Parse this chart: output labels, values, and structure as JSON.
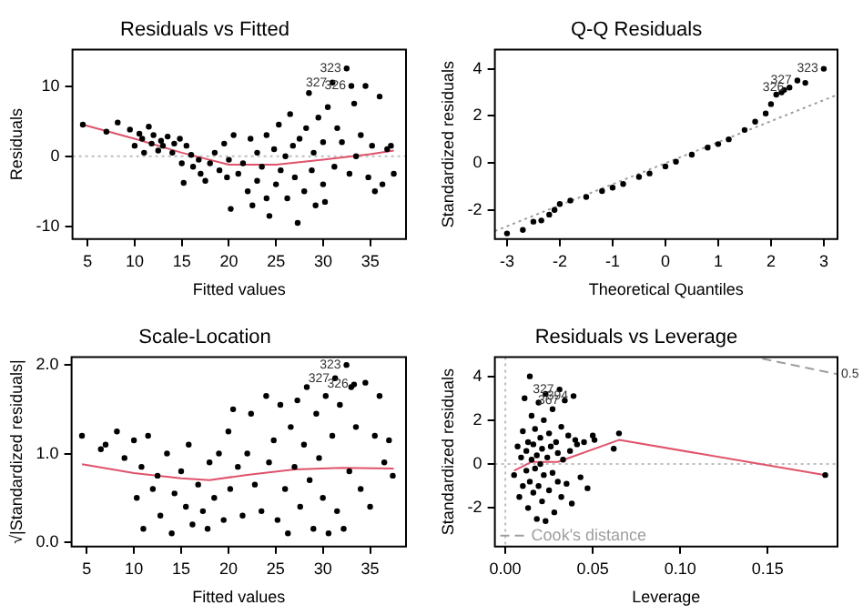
{
  "chart_data": [
    {
      "type": "scatter",
      "title": "Residuals vs Fitted",
      "xlabel": "Fitted values",
      "ylabel": "Residuals",
      "xlim": [
        3.4,
        38.8
      ],
      "ylim": [
        -11.8,
        15.2
      ],
      "xticks": [
        5,
        10,
        15,
        20,
        25,
        30,
        35
      ],
      "yticks": [
        -10,
        0,
        10
      ],
      "ref_lines": [
        {
          "axis": "y",
          "value": 0,
          "color": "#bebebe",
          "line_style": "dotted"
        }
      ],
      "annotations": [
        {
          "text": "323",
          "x": 32.5,
          "y": 12.5
        },
        {
          "text": "327",
          "x": 31,
          "y": 10.5
        },
        {
          "text": "326",
          "x": 33,
          "y": 10
        }
      ],
      "series": [
        {
          "type": "scatter",
          "color": "#000000",
          "x": [
            4.5,
            7,
            8.2,
            9.5,
            10,
            10.5,
            10.8,
            11,
            11.5,
            11.8,
            12,
            12.5,
            12.8,
            13,
            13.5,
            14,
            14.2,
            14.8,
            15,
            15.2,
            15.5,
            16,
            16.2,
            16.8,
            17,
            17.5,
            18,
            18.5,
            19,
            19.5,
            19.8,
            20,
            20.2,
            20.5,
            21,
            21.5,
            22,
            22.3,
            22.5,
            23,
            23,
            23.5,
            24,
            24,
            24.3,
            24.8,
            25,
            25.3,
            25.5,
            26,
            26.2,
            26.5,
            26.8,
            27,
            27.3,
            27.5,
            28,
            28.2,
            28.5,
            28.8,
            29,
            29.2,
            29.5,
            30,
            30,
            30.2,
            30.5,
            31,
            31.2,
            31.5,
            32,
            32.5,
            32.8,
            33,
            33.3,
            33.5,
            34,
            34.5,
            34.8,
            35.2,
            35.5,
            36,
            36.3,
            36.8,
            37.2,
            37.5
          ],
          "values": [
            4.5,
            3.5,
            4.8,
            3.8,
            1.5,
            3.2,
            2.5,
            0.5,
            4.2,
            1.8,
            3,
            0.8,
            2.2,
            1.5,
            2.8,
            0.5,
            1.8,
            2.5,
            -1,
            -3.8,
            1.5,
            0.2,
            -1.5,
            -0.5,
            -2.5,
            -3.5,
            -1,
            0.5,
            -2,
            1.8,
            -3,
            -0.5,
            -7.5,
            3,
            -2.5,
            -1,
            -5,
            2.5,
            -7,
            0.5,
            -3.5,
            -1.5,
            3,
            -6,
            -8.5,
            1,
            -4,
            4.5,
            -2,
            0,
            -6,
            6,
            1.5,
            -3,
            -9.5,
            2.5,
            -5,
            4,
            9,
            -2,
            0.5,
            -7,
            5.5,
            2,
            -4,
            -6.5,
            7,
            10.5,
            -1.5,
            4,
            2,
            12.5,
            -2.5,
            10,
            7.5,
            0,
            3,
            10,
            -3,
            1.5,
            -5,
            8.5,
            -4,
            1,
            1.5,
            -2.5
          ]
        },
        {
          "type": "line",
          "color": "#df536b",
          "x": [
            4.5,
            10,
            15,
            20,
            25,
            30,
            35,
            37.5
          ],
          "values": [
            4.5,
            2.5,
            0.5,
            -1.2,
            -1.2,
            -0.5,
            0.3,
            0.8
          ]
        }
      ]
    },
    {
      "type": "scatter",
      "title": "Q-Q Residuals",
      "xlabel": "Theoretical Quantiles",
      "ylabel": "Standardized residuals",
      "xlim": [
        -3.23,
        3.26
      ],
      "ylim": [
        -3.24,
        4.82
      ],
      "xticks": [
        -3,
        -2,
        -1,
        0,
        1,
        2,
        3
      ],
      "yticks": [
        -2,
        0,
        2,
        4
      ],
      "annotations": [
        {
          "text": "323",
          "x": 3,
          "y": 4
        },
        {
          "text": "327",
          "x": 2.5,
          "y": 3.5
        },
        {
          "text": "326",
          "x": 2.35,
          "y": 3.2
        }
      ],
      "series": [
        {
          "type": "scatter",
          "color": "#000000",
          "x": [
            -3,
            -2.7,
            -2.5,
            -2.35,
            -2.2,
            -2.1,
            -2,
            -1.8,
            -1.5,
            -1.2,
            -1,
            -0.8,
            -0.5,
            -0.3,
            0,
            0.2,
            0.5,
            0.8,
            1,
            1.2,
            1.5,
            1.7,
            1.9,
            2,
            2.1,
            2.2,
            2.25,
            2.35,
            2.5,
            2.65,
            3
          ],
          "values": [
            -3,
            -2.85,
            -2.5,
            -2.45,
            -2.2,
            -2,
            -1.75,
            -1.6,
            -1.45,
            -1.2,
            -1.05,
            -0.9,
            -0.6,
            -0.45,
            -0.15,
            0.05,
            0.35,
            0.65,
            0.8,
            1,
            1.4,
            1.75,
            2.1,
            2.5,
            2.9,
            3,
            3.1,
            3.2,
            3.5,
            3.4,
            4
          ]
        },
        {
          "type": "line",
          "color": "#9e9e9e",
          "line_style": "dotted",
          "x": [
            -3.23,
            3.26
          ],
          "values": [
            -2.9,
            2.9
          ]
        }
      ]
    },
    {
      "type": "scatter",
      "title": "Scale-Location",
      "xlabel": "Fitted values",
      "ylabel": "√|Standardized residuals|",
      "xlim": [
        3.4,
        38.8
      ],
      "ylim": [
        -0.05,
        2.09
      ],
      "xticks": [
        5,
        10,
        15,
        20,
        25,
        30,
        35
      ],
      "yticks": [
        {
          "value": 0,
          "label": "0.0"
        },
        {
          "value": 1,
          "label": "1.0"
        },
        {
          "value": 2,
          "label": "2.0"
        }
      ],
      "annotations": [
        {
          "text": "323",
          "x": 32.5,
          "y": 2
        },
        {
          "text": "327",
          "x": 31.3,
          "y": 1.85
        },
        {
          "text": "326",
          "x": 33.3,
          "y": 1.78
        }
      ],
      "series": [
        {
          "type": "scatter",
          "color": "#000000",
          "x": [
            4.5,
            6.5,
            7,
            8.2,
            9,
            10,
            10.3,
            10.8,
            11,
            11.5,
            12,
            12.5,
            12.8,
            13.5,
            14,
            14.3,
            15,
            15.5,
            15.8,
            16.2,
            16.8,
            17.3,
            17.8,
            18,
            18.5,
            19,
            19.5,
            20,
            20.2,
            20.5,
            21,
            21.5,
            22,
            22.4,
            22.8,
            23.5,
            24,
            24.3,
            24.8,
            25.2,
            25.5,
            26,
            26.3,
            26.6,
            27,
            27.3,
            27.6,
            28,
            28.3,
            28.6,
            29,
            29.3,
            29.6,
            30,
            30.3,
            30.6,
            31,
            31.5,
            31.8,
            32.2,
            32.5,
            32.8,
            33,
            33.5,
            34,
            34.5,
            35,
            35.5,
            36,
            36.5,
            37,
            37.4,
            31.3,
            33.3
          ],
          "values": [
            1.2,
            1.05,
            1.1,
            1.25,
            0.95,
            1.15,
            0.5,
            0.85,
            0.15,
            1.2,
            0.6,
            0.75,
            0.3,
            1,
            0.1,
            0.55,
            0.8,
            0.4,
            1.1,
            0.2,
            0.65,
            0.35,
            0.15,
            0.9,
            0.5,
            1,
            0.25,
            1.25,
            0.6,
            1.5,
            0.85,
            0.3,
            1,
            1.45,
            0.65,
            0.35,
            1.65,
            0.9,
            1.15,
            0.25,
            1.55,
            0.6,
            0.1,
            1.3,
            0.85,
            1.6,
            0.4,
            1.1,
            1.75,
            0.7,
            0.15,
            1.45,
            0.95,
            0.5,
            1.65,
            0.1,
            1.2,
            0.35,
            1.55,
            0.15,
            2,
            0.8,
            1.75,
            1.3,
            0.6,
            1.8,
            0.4,
            1.2,
            1.65,
            0.9,
            1.15,
            0.75,
            1.85,
            1.78
          ]
        },
        {
          "type": "line",
          "color": "#df536b",
          "x": [
            4.5,
            10,
            15,
            18,
            22,
            27,
            32,
            37.5
          ],
          "values": [
            0.88,
            0.78,
            0.72,
            0.7,
            0.76,
            0.82,
            0.84,
            0.83
          ]
        }
      ]
    },
    {
      "type": "scatter",
      "title": "Residuals vs Leverage",
      "xlabel": "Leverage",
      "ylabel": "Standardized residuals",
      "xlim": [
        -0.006,
        0.19
      ],
      "ylim": [
        -3.76,
        4.88
      ],
      "xticks": [
        {
          "value": 0,
          "label": "0.00"
        },
        0.05,
        {
          "value": 0.1,
          "label": "0.10"
        },
        0.15
      ],
      "yticks": [
        -2,
        0,
        2,
        4
      ],
      "legend": "bottom left",
      "ref_lines": [
        {
          "axis": "y",
          "value": 0,
          "color": "#bebebe",
          "line_style": "dotted"
        },
        {
          "axis": "x",
          "value": 0,
          "color": "#bebebe",
          "line_style": "dotted"
        }
      ],
      "annotations": [
        {
          "text": "327",
          "x": 0.031,
          "y": 3.4
        },
        {
          "text": "367",
          "x": 0.034,
          "y": 2.9
        },
        {
          "text": "394",
          "x": 0.039,
          "y": 3.1
        },
        {
          "text": "0.5",
          "x": 0.19,
          "y": 4.1
        }
      ],
      "series": [
        {
          "type": "scatter",
          "color": "#000000",
          "x": [
            0.005,
            0.007,
            0.008,
            0.009,
            0.01,
            0.01,
            0.011,
            0.012,
            0.012,
            0.013,
            0.013,
            0.014,
            0.014,
            0.015,
            0.015,
            0.016,
            0.016,
            0.017,
            0.017,
            0.018,
            0.018,
            0.019,
            0.019,
            0.02,
            0.02,
            0.021,
            0.021,
            0.022,
            0.022,
            0.023,
            0.023,
            0.024,
            0.025,
            0.025,
            0.026,
            0.027,
            0.027,
            0.028,
            0.029,
            0.03,
            0.03,
            0.031,
            0.032,
            0.032,
            0.033,
            0.034,
            0.035,
            0.036,
            0.037,
            0.038,
            0.04,
            0.041,
            0.043,
            0.045,
            0.047,
            0.05,
            0.051,
            0.062,
            0.065,
            0.183,
            0.039
          ],
          "values": [
            -0.5,
            0.8,
            -1.5,
            0.3,
            -1,
            1.5,
            3,
            -0.3,
            0.6,
            -2,
            1,
            4,
            -0.8,
            0.2,
            2.2,
            -1.3,
            0.9,
            -0.2,
            1.6,
            -2.5,
            0.4,
            -1,
            2.8,
            0,
            1.2,
            -1.7,
            0.7,
            -0.5,
            2,
            3.2,
            -2.6,
            0.3,
            -1.2,
            1.4,
            0.8,
            -0.4,
            2.5,
            -2.2,
            1,
            -0.8,
            0.5,
            3.4,
            1.7,
            -1.5,
            0.2,
            2.9,
            -0.9,
            1.3,
            0.6,
            -1.8,
            1.1,
            0.9,
            -0.6,
            1,
            -1.1,
            1.3,
            1.1,
            0.7,
            1.4,
            -0.5,
            3.1
          ]
        },
        {
          "type": "line",
          "color": "#df536b",
          "x": [
            0.005,
            0.015,
            0.03,
            0.065,
            0.183
          ],
          "values": [
            -0.3,
            0.1,
            0.1,
            1.1,
            -0.5
          ]
        },
        {
          "type": "line",
          "name": "Cook's distance",
          "color": "#9e9e9e",
          "line_style": "dashed",
          "x": [
            0.147,
            0.19
          ],
          "values": [
            4.8,
            4.1
          ]
        }
      ]
    }
  ]
}
